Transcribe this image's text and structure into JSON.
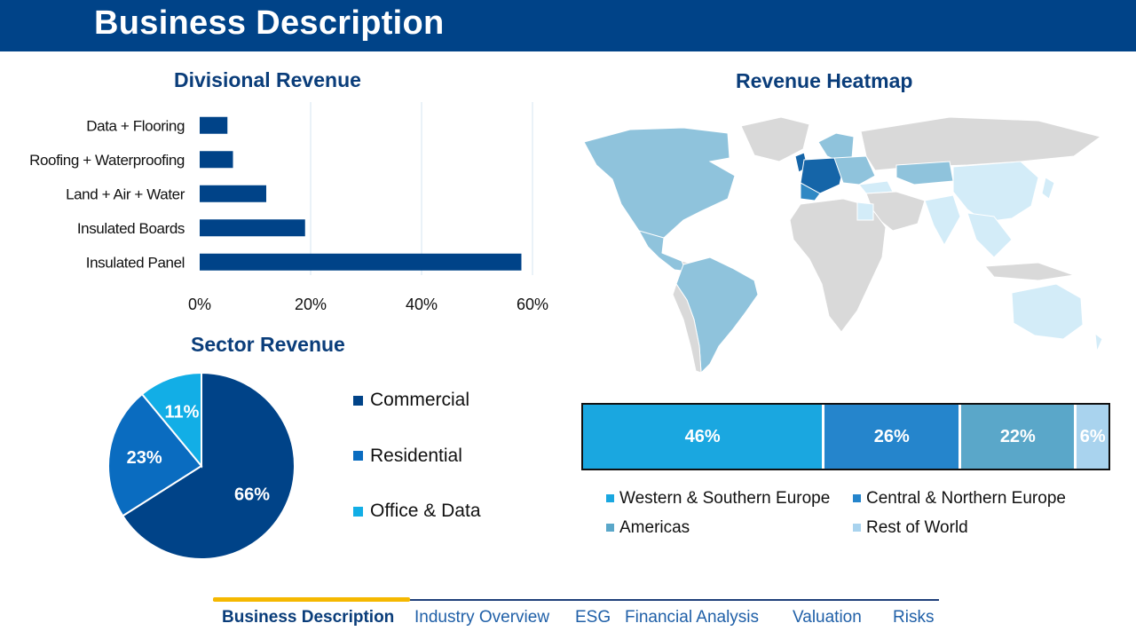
{
  "header": {
    "title": "Business Description"
  },
  "divisional": {
    "title": "Divisional Revenue",
    "chart_data": {
      "type": "bar",
      "orientation": "horizontal",
      "categories": [
        "Data + Flooring",
        "Roofing + Waterproofing",
        "Land + Air + Water",
        "Insulated Boards",
        "Insulated Panel"
      ],
      "values": [
        5,
        6,
        12,
        19,
        58
      ],
      "xticks": [
        "0%",
        "20%",
        "40%",
        "60%"
      ],
      "xlim": [
        0,
        60
      ],
      "grid": true,
      "colors": {
        "bar": "#004388"
      }
    }
  },
  "sector": {
    "title": "Sector Revenue",
    "chart_data": {
      "type": "pie",
      "categories": [
        "Commercial",
        "Residential",
        "Office & Data"
      ],
      "values": [
        66,
        23,
        11
      ],
      "labels": [
        "66%",
        "23%",
        "11%"
      ],
      "legend_position": "right",
      "colors": [
        "#004388",
        "#0a6cc0",
        "#12aee6"
      ]
    }
  },
  "heatmap": {
    "title": "Revenue Heatmap",
    "map_colors": {
      "base": "#d9d9d9",
      "americas": "#8fc3dc",
      "europe_dark": "#1565a8",
      "europe_mid": "#2f88c4",
      "rest_of_world": "#d3ecf8"
    }
  },
  "regions": {
    "chart_data": {
      "type": "bar",
      "orientation": "stacked-horizontal",
      "categories": [
        "Western & Southern Europe",
        "Central & Northern Europe",
        "Americas",
        "Rest of World"
      ],
      "values": [
        46,
        26,
        22,
        6
      ],
      "labels": [
        "46%",
        "26%",
        "22%",
        "6%"
      ],
      "colors": [
        "#1aa7e0",
        "#2585cc",
        "#5aa7c9",
        "#a9d3ee"
      ]
    }
  },
  "nav": {
    "items": [
      "Business Description",
      "Industry Overview",
      "ESG",
      "Financial Analysis",
      "Valuation",
      "Risks"
    ],
    "active": 0
  }
}
